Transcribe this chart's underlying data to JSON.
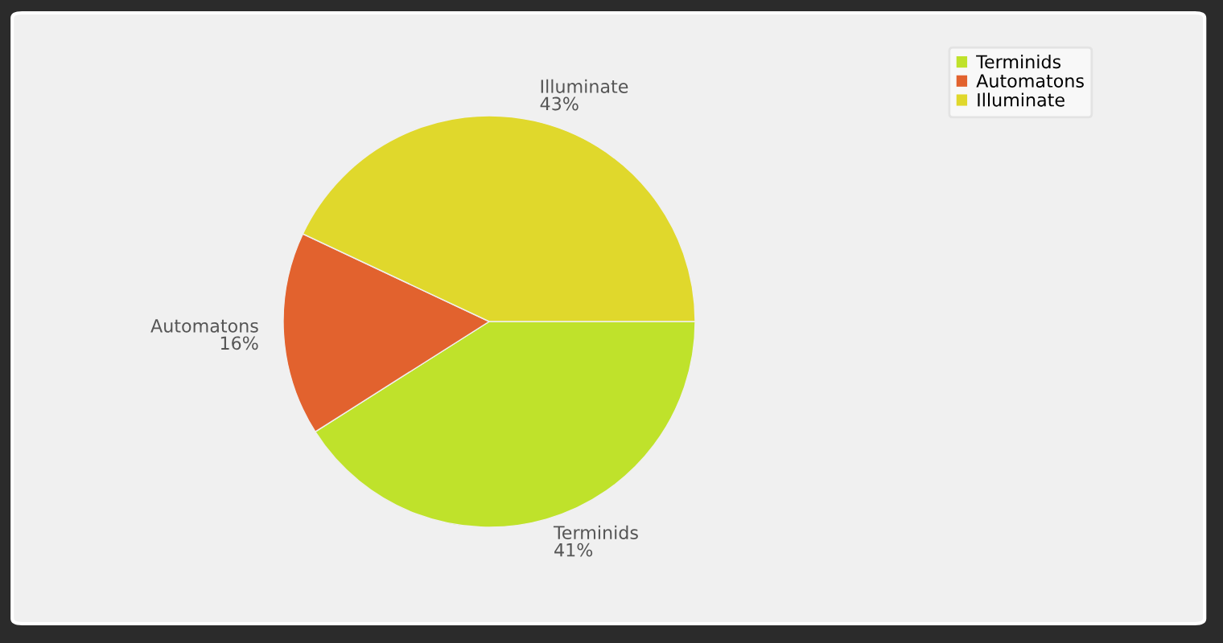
{
  "chart_data": {
    "type": "pie",
    "categories": [
      "Terminids",
      "Automatons",
      "Illuminate"
    ],
    "values": [
      41,
      16,
      43
    ],
    "colors": [
      "#bfe22b",
      "#e2622e",
      "#e0d82c"
    ],
    "value_labels": [
      "41%",
      "16%",
      "43%"
    ],
    "legend": "top right"
  }
}
